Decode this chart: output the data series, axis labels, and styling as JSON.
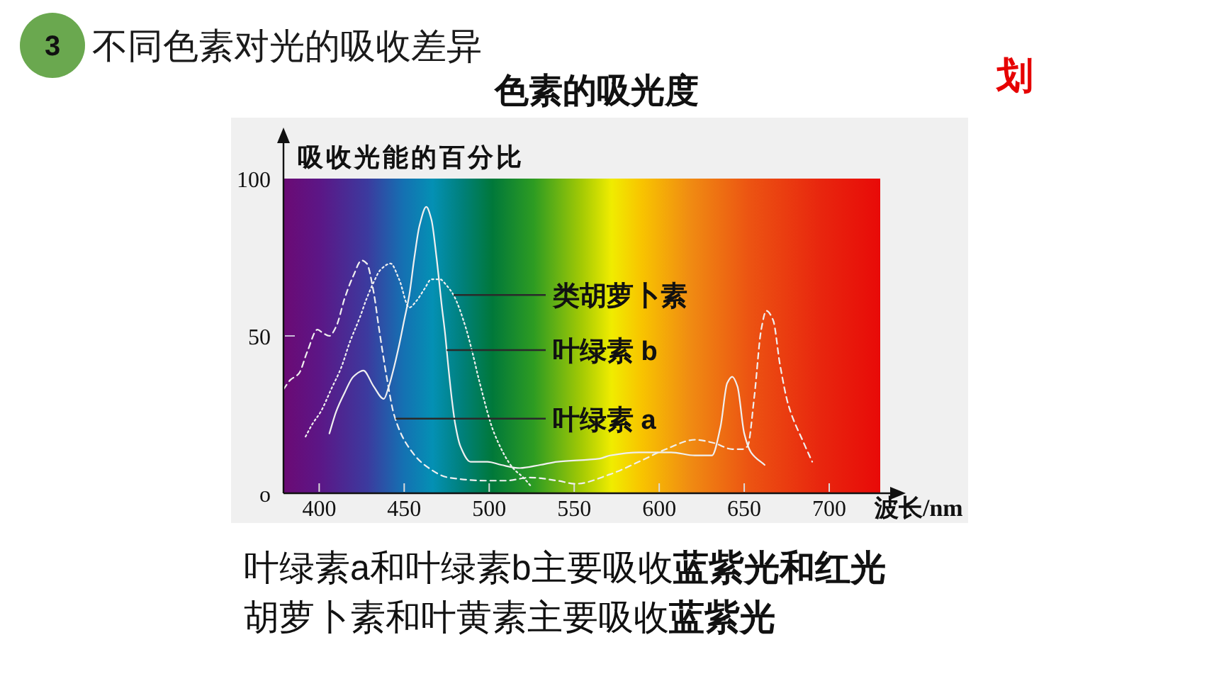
{
  "chart_data": {
    "type": "line",
    "title": "色素的吸光度",
    "xlabel": "波长/nm",
    "ylabel": "吸收光能的百分比",
    "annotations": [
      "3",
      "不同色素对光的吸收差异",
      "划",
      "叶绿素a和叶绿素b主要吸收",
      "蓝紫光和红光",
      "胡萝卜素和叶黄素主要吸收",
      "蓝紫光"
    ],
    "xlim": [
      379,
      730
    ],
    "xticks": [
      400,
      450,
      500,
      550,
      600,
      650,
      700
    ],
    "ylim": [
      0,
      100
    ],
    "yticks": [
      {
        "value": 0,
        "label": "o"
      },
      50,
      100
    ],
    "series": [
      {
        "name": "类胡萝卜素",
        "color": "#f0f0f0",
        "line_style": "dotted",
        "x": [
          392,
          396,
          401,
          407,
          413,
          418,
          424,
          428,
          432,
          436,
          442,
          447,
          453,
          457,
          462,
          466,
          471,
          475,
          479,
          486,
          490,
          494,
          503,
          514,
          520,
          525
        ],
        "values": [
          18,
          22,
          26,
          33,
          40,
          48,
          56,
          62,
          67,
          71,
          73,
          68,
          59,
          61,
          65,
          68,
          68,
          66,
          63,
          53,
          45,
          36,
          19,
          8,
          5,
          2
        ]
      },
      {
        "name": "叶绿素 b",
        "color": "#f0f0f0",
        "line_style": "solid",
        "x": [
          406,
          410,
          415,
          420,
          426,
          432,
          438,
          441,
          444,
          447,
          450,
          453,
          456,
          459,
          463,
          466,
          469,
          472,
          474,
          476,
          478,
          480,
          483,
          489,
          499,
          507,
          518,
          530,
          540,
          565,
          571,
          588,
          607,
          621,
          631,
          636,
          640,
          643,
          646,
          650,
          654,
          662
        ],
        "values": [
          19,
          26,
          32,
          37,
          39,
          34,
          30,
          34,
          40,
          47,
          55,
          63,
          75,
          85,
          91,
          87,
          75,
          60,
          51,
          40,
          30,
          22,
          15,
          10,
          10,
          9,
          8,
          9,
          10,
          11,
          12,
          13,
          13,
          12,
          12,
          21,
          35,
          37,
          34,
          19,
          13,
          9
        ]
      },
      {
        "name": "叶绿素 a",
        "color": "#f0f0f0",
        "line_style": "dashed",
        "x": [
          379,
          383,
          388,
          393,
          399,
          402,
          406,
          410,
          415,
          420,
          425,
          428,
          432,
          435,
          440,
          444,
          451,
          462,
          476,
          498,
          510,
          524,
          540,
          551,
          571,
          588,
          604,
          621,
          632,
          643,
          649,
          652,
          656,
          660,
          663,
          667,
          671,
          676,
          685,
          690
        ],
        "values": [
          33,
          36,
          38,
          45,
          52,
          51,
          50,
          53,
          62,
          69,
          74,
          73,
          64,
          53,
          36,
          25,
          16,
          9,
          5,
          4,
          4,
          5,
          4,
          3,
          6,
          10,
          14,
          17,
          16,
          14,
          14,
          15,
          31,
          52,
          58,
          55,
          41,
          28,
          16,
          10
        ]
      }
    ]
  }
}
